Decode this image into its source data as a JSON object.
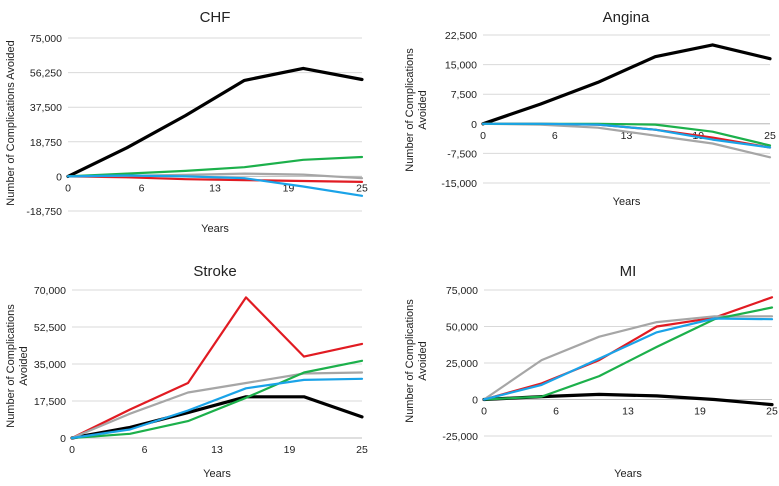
{
  "chart_data": [
    {
      "type": "line",
      "title": "CHF",
      "xlabel": "Years",
      "ylabel": "Number of Complications Avoided",
      "x": [
        0,
        5,
        10,
        15,
        20,
        25
      ],
      "x_tick_labels": [
        "0",
        "6",
        "13",
        "19",
        "25"
      ],
      "y_ticks": [
        -18750,
        0,
        18750,
        37500,
        56250,
        75000
      ],
      "y_tick_labels": [
        "-18,750",
        "0",
        "18,750",
        "37,500",
        "56,250",
        "75,000"
      ],
      "ylim": [
        -18750,
        75000
      ],
      "grid": true,
      "series": [
        {
          "color": "#000000",
          "width": 3.2,
          "values": [
            0,
            15500,
            33000,
            52000,
            58500,
            52500
          ]
        },
        {
          "color": "#e11b22",
          "width": 2.2,
          "values": [
            0,
            -500,
            -1500,
            -2000,
            -2500,
            -3000
          ]
        },
        {
          "color": "#a6a6a6",
          "width": 2.2,
          "values": [
            0,
            300,
            800,
            1500,
            1000,
            -1000
          ]
        },
        {
          "color": "#1cb04b",
          "width": 2.2,
          "values": [
            0,
            1500,
            3000,
            5000,
            9000,
            10500
          ]
        },
        {
          "color": "#1aa3e8",
          "width": 2.2,
          "values": [
            0,
            500,
            0,
            -1000,
            -5500,
            -10500
          ]
        }
      ]
    },
    {
      "type": "line",
      "title": "Angina",
      "xlabel": "Years",
      "ylabel": "Number of Complications Avoided",
      "x": [
        0,
        5,
        10,
        15,
        20,
        25
      ],
      "x_tick_labels": [
        "0",
        "6",
        "13",
        "19",
        "25"
      ],
      "y_ticks": [
        -15000,
        -7500,
        0,
        7500,
        15000,
        22500
      ],
      "y_tick_labels": [
        "-15,000",
        "-7,500",
        "0",
        "7,500",
        "15,000",
        "22,500"
      ],
      "ylim": [
        -15000,
        22500
      ],
      "grid": true,
      "series": [
        {
          "color": "#000000",
          "width": 3.2,
          "values": [
            0,
            5000,
            10500,
            17000,
            20000,
            16500
          ]
        },
        {
          "color": "#e11b22",
          "width": 2.2,
          "values": [
            0,
            0,
            -200,
            -1500,
            -3500,
            -6000
          ]
        },
        {
          "color": "#a6a6a6",
          "width": 2.2,
          "values": [
            0,
            -200,
            -1000,
            -3000,
            -5000,
            -8500
          ]
        },
        {
          "color": "#1cb04b",
          "width": 2.2,
          "values": [
            0,
            0,
            0,
            -200,
            -2000,
            -5500
          ]
        },
        {
          "color": "#1aa3e8",
          "width": 2.2,
          "values": [
            0,
            0,
            -200,
            -1500,
            -4000,
            -6000
          ]
        }
      ]
    },
    {
      "type": "line",
      "title": "Stroke",
      "xlabel": "Years",
      "ylabel": "Number of Complications Avoided",
      "x": [
        0,
        5,
        10,
        15,
        20,
        25
      ],
      "x_tick_labels": [
        "0",
        "6",
        "13",
        "19",
        "25"
      ],
      "y_ticks": [
        0,
        17500,
        35000,
        52500,
        70000
      ],
      "y_tick_labels": [
        "0",
        "17,500",
        "35,000",
        "52,500",
        "70,000"
      ],
      "ylim": [
        0,
        70000
      ],
      "grid": true,
      "series": [
        {
          "color": "#000000",
          "width": 3.2,
          "values": [
            0,
            5000,
            12000,
            19500,
            19500,
            10000
          ]
        },
        {
          "color": "#e11b22",
          "width": 2.2,
          "values": [
            0,
            13500,
            26000,
            66500,
            38500,
            44500
          ]
        },
        {
          "color": "#a6a6a6",
          "width": 2.2,
          "values": [
            0,
            11500,
            21500,
            26000,
            30500,
            31000
          ]
        },
        {
          "color": "#1cb04b",
          "width": 2.2,
          "values": [
            0,
            2000,
            8000,
            19000,
            31000,
            36500
          ]
        },
        {
          "color": "#1aa3e8",
          "width": 2.2,
          "values": [
            0,
            4000,
            13000,
            23500,
            27500,
            28000
          ]
        }
      ]
    },
    {
      "type": "line",
      "title": "MI",
      "xlabel": "Years",
      "ylabel": "Number of Complications Avoided",
      "x": [
        0,
        5,
        10,
        15,
        20,
        25
      ],
      "x_tick_labels": [
        "0",
        "6",
        "13",
        "19",
        "25"
      ],
      "y_ticks": [
        -25000,
        0,
        25000,
        50000,
        75000
      ],
      "y_tick_labels": [
        "-25,000",
        "0",
        "25,000",
        "50,000",
        "75,000"
      ],
      "ylim": [
        -25000,
        75000
      ],
      "grid": true,
      "series": [
        {
          "color": "#000000",
          "width": 3.2,
          "values": [
            0,
            2000,
            3500,
            2500,
            0,
            -3500
          ]
        },
        {
          "color": "#e11b22",
          "width": 2.2,
          "values": [
            0,
            11000,
            27000,
            50000,
            56000,
            70000
          ]
        },
        {
          "color": "#a6a6a6",
          "width": 2.2,
          "values": [
            0,
            27000,
            43000,
            53000,
            57000,
            57000
          ]
        },
        {
          "color": "#1cb04b",
          "width": 2.2,
          "values": [
            0,
            2000,
            16000,
            36000,
            55000,
            63000
          ]
        },
        {
          "color": "#1aa3e8",
          "width": 2.2,
          "values": [
            0,
            10000,
            28000,
            46000,
            55500,
            55000
          ]
        }
      ]
    }
  ]
}
